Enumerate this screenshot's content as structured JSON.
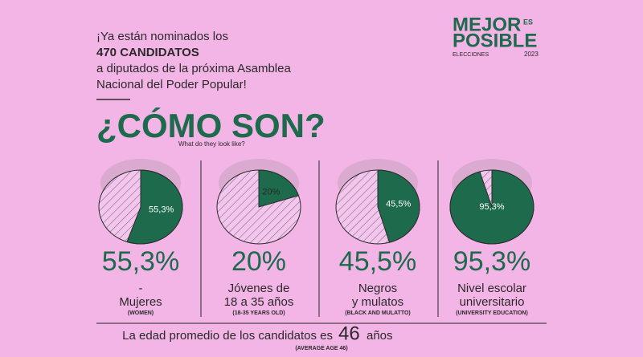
{
  "header": {
    "intro": [
      "¡Ya están nominados los",
      "470 CANDIDATOS",
      "a diputados de la próxima Asamblea",
      "Nacional del Poder Popular!"
    ],
    "logo": {
      "top": "MEJOR",
      "small": "ES",
      "bottom": "POSIBLE",
      "caption": "ELECCIONES",
      "year": "2023"
    },
    "title": "¿CÓMO SON?",
    "subtitle": "What do they look like?"
  },
  "chart_data": [
    {
      "type": "pie",
      "values": [
        55.3
      ],
      "value_labels": [
        "55,3%"
      ],
      "color": "#1d6a4c",
      "label": [
        "-",
        "Mujeres"
      ],
      "translation": "(WOMEN)"
    },
    {
      "type": "pie",
      "values": [
        20
      ],
      "value_labels": [
        "20%"
      ],
      "color": "#1d6a4c",
      "label": [
        "Jóvenes de",
        "18 a 35 años"
      ],
      "translation": "(18-35 YEARS OLD)"
    },
    {
      "type": "pie",
      "values": [
        45.5
      ],
      "value_labels": [
        "45,5%"
      ],
      "color": "#1d6a4c",
      "label": [
        "Negros",
        "y mulatos"
      ],
      "translation": "(BLACK AND MULATTO)"
    },
    {
      "type": "pie",
      "values": [
        95.3
      ],
      "value_labels": [
        "95,3%"
      ],
      "color": "#1d6a4c",
      "label": [
        "Nivel escolar",
        "universitario"
      ],
      "translation": "(UNIVERSITY EDUCATION)"
    }
  ],
  "footer": {
    "text": "La edad promedio de los candidatos es",
    "number": "46",
    "unit": "años",
    "translation": "(AVERAGE AGE 46)"
  }
}
